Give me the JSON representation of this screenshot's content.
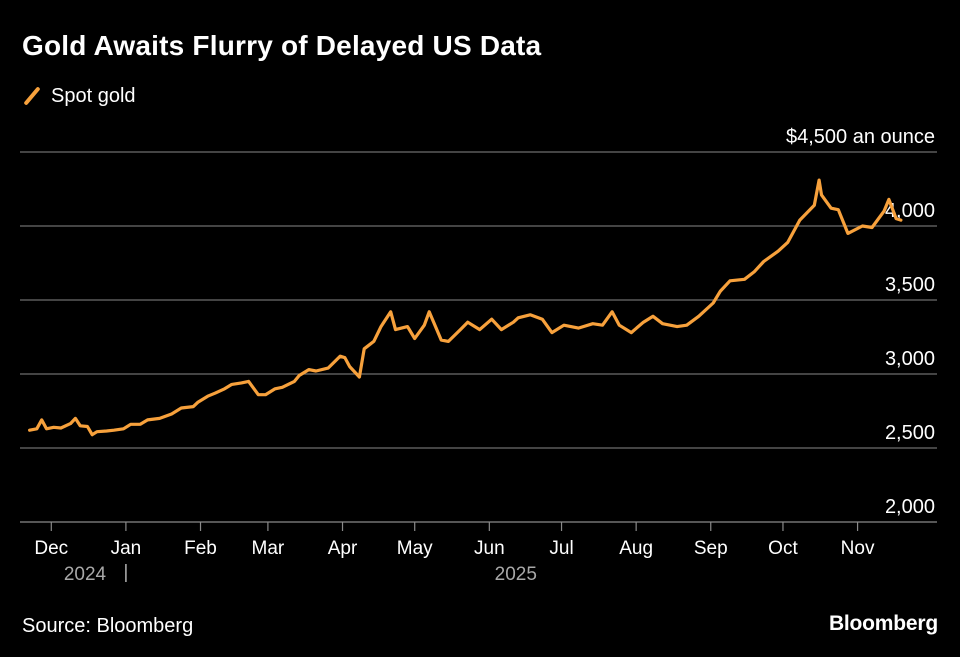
{
  "title": "Gold Awaits Flurry of Delayed US Data",
  "legend": {
    "label": "Spot gold",
    "color": "#f7a13c"
  },
  "source": "Source: Bloomberg",
  "brand": "Bloomberg",
  "chart_data": {
    "type": "line",
    "title": "Gold Awaits Flurry of Delayed US Data",
    "y_unit_label": "$4,500 an ounce",
    "ylim": [
      2000,
      4500
    ],
    "yticks": [
      2000,
      2500,
      3000,
      3500,
      4000,
      4500
    ],
    "ytick_labels": [
      "2,000",
      "2,500",
      "3,000",
      "3,500",
      "4,000",
      "$4,500 an ounce"
    ],
    "xlim": [
      "2024-11-18",
      "2025-12-04"
    ],
    "x_ticks": [
      {
        "date": "2024-12-01",
        "label": "Dec"
      },
      {
        "date": "2025-01-01",
        "label": "Jan"
      },
      {
        "date": "2025-02-01",
        "label": "Feb"
      },
      {
        "date": "2025-03-01",
        "label": "Mar"
      },
      {
        "date": "2025-04-01",
        "label": "Apr"
      },
      {
        "date": "2025-05-01",
        "label": "May"
      },
      {
        "date": "2025-06-01",
        "label": "Jun"
      },
      {
        "date": "2025-07-01",
        "label": "Jul"
      },
      {
        "date": "2025-08-01",
        "label": "Aug"
      },
      {
        "date": "2025-09-01",
        "label": "Sep"
      },
      {
        "date": "2025-10-01",
        "label": "Oct"
      },
      {
        "date": "2025-11-01",
        "label": "Nov"
      }
    ],
    "year_labels": [
      {
        "date": "2024-12-15",
        "label": "2024"
      },
      {
        "date": "2025-06-12",
        "label": "2025"
      }
    ],
    "year_divider": "2025-01-01",
    "grid": true,
    "legend_position": "top-left",
    "series": [
      {
        "name": "Spot gold",
        "color": "#f7a13c",
        "x": [
          "2024-11-22",
          "2024-11-25",
          "2024-11-27",
          "2024-11-29",
          "2024-12-02",
          "2024-12-05",
          "2024-12-09",
          "2024-12-11",
          "2024-12-13",
          "2024-12-16",
          "2024-12-18",
          "2024-12-20",
          "2024-12-24",
          "2024-12-27",
          "2024-12-31",
          "2025-01-03",
          "2025-01-07",
          "2025-01-10",
          "2025-01-15",
          "2025-01-20",
          "2025-01-24",
          "2025-01-29",
          "2025-01-31",
          "2025-02-04",
          "2025-02-07",
          "2025-02-11",
          "2025-02-14",
          "2025-02-18",
          "2025-02-21",
          "2025-02-25",
          "2025-02-28",
          "2025-03-04",
          "2025-03-07",
          "2025-03-12",
          "2025-03-14",
          "2025-03-18",
          "2025-03-21",
          "2025-03-26",
          "2025-03-31",
          "2025-04-02",
          "2025-04-04",
          "2025-04-08",
          "2025-04-10",
          "2025-04-14",
          "2025-04-17",
          "2025-04-21",
          "2025-04-23",
          "2025-04-28",
          "2025-05-01",
          "2025-05-05",
          "2025-05-07",
          "2025-05-12",
          "2025-05-15",
          "2025-05-20",
          "2025-05-23",
          "2025-05-28",
          "2025-06-02",
          "2025-06-06",
          "2025-06-11",
          "2025-06-13",
          "2025-06-18",
          "2025-06-23",
          "2025-06-27",
          "2025-07-02",
          "2025-07-08",
          "2025-07-14",
          "2025-07-18",
          "2025-07-22",
          "2025-07-25",
          "2025-07-30",
          "2025-08-04",
          "2025-08-08",
          "2025-08-12",
          "2025-08-18",
          "2025-08-22",
          "2025-08-27",
          "2025-09-02",
          "2025-09-05",
          "2025-09-09",
          "2025-09-15",
          "2025-09-19",
          "2025-09-23",
          "2025-09-29",
          "2025-10-03",
          "2025-10-08",
          "2025-10-14",
          "2025-10-16",
          "2025-10-17",
          "2025-10-21",
          "2025-10-24",
          "2025-10-28",
          "2025-11-03",
          "2025-11-07",
          "2025-11-12",
          "2025-11-14",
          "2025-11-17",
          "2025-11-19"
        ],
        "y": [
          2620,
          2630,
          2690,
          2630,
          2640,
          2635,
          2665,
          2700,
          2650,
          2645,
          2590,
          2610,
          2615,
          2620,
          2630,
          2660,
          2660,
          2690,
          2700,
          2730,
          2770,
          2780,
          2810,
          2850,
          2870,
          2900,
          2930,
          2940,
          2950,
          2860,
          2860,
          2900,
          2910,
          2950,
          2990,
          3030,
          3020,
          3040,
          3120,
          3110,
          3050,
          2980,
          3170,
          3220,
          3320,
          3420,
          3300,
          3320,
          3240,
          3330,
          3420,
          3230,
          3220,
          3300,
          3350,
          3300,
          3370,
          3300,
          3350,
          3380,
          3400,
          3370,
          3280,
          3330,
          3310,
          3340,
          3330,
          3420,
          3330,
          3280,
          3350,
          3390,
          3340,
          3320,
          3330,
          3390,
          3480,
          3560,
          3630,
          3640,
          3690,
          3760,
          3830,
          3890,
          4040,
          4140,
          4310,
          4210,
          4120,
          4110,
          3950,
          4000,
          3990,
          4100,
          4180,
          4050,
          4040
        ]
      }
    ]
  }
}
